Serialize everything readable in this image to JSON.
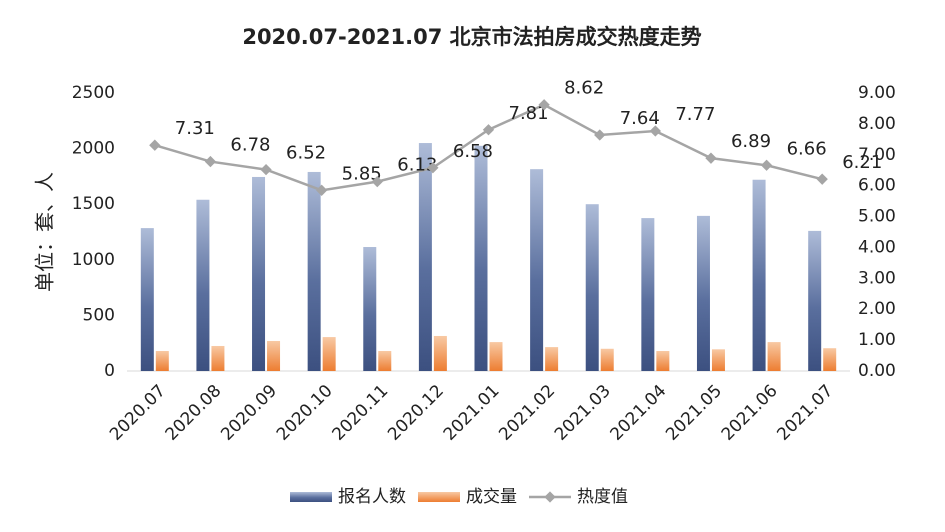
{
  "chart_data": {
    "type": "bar_line",
    "title": "2020.07-2021.07 北京市法拍房成交热度走势",
    "y_label": "单位：套、人",
    "categories": [
      "2020.07",
      "2020.08",
      "2020.09",
      "2020.10",
      "2020.11",
      "2020.12",
      "2021.01",
      "2021.02",
      "2021.03",
      "2021.04",
      "2021.05",
      "2021.06",
      "2021.07"
    ],
    "series": [
      {
        "name": "报名人数",
        "type": "bar",
        "color": "#44598a",
        "values": [
          1285,
          1540,
          1745,
          1790,
          1115,
          2050,
          2025,
          1815,
          1500,
          1375,
          1395,
          1720,
          1260
        ]
      },
      {
        "name": "成交量",
        "type": "bar",
        "color": "#ed7d31",
        "values": [
          180,
          225,
          270,
          305,
          180,
          315,
          260,
          215,
          200,
          180,
          195,
          260,
          205
        ]
      },
      {
        "name": "热度值",
        "type": "line",
        "axis": "y2",
        "color": "#a5a5a5",
        "values": [
          7.31,
          6.78,
          6.52,
          5.85,
          6.13,
          6.58,
          7.81,
          8.62,
          7.64,
          7.77,
          6.89,
          6.66,
          6.21
        ]
      }
    ],
    "ylim": [
      0,
      2500
    ],
    "yticks": [
      0,
      500,
      1000,
      1500,
      2000,
      2500
    ],
    "y2lim": [
      0,
      9
    ],
    "y2ticks": [
      {
        "value": 0,
        "label": "0.00"
      },
      {
        "value": 1,
        "label": "1.00"
      },
      {
        "value": 2,
        "label": "2.00"
      },
      {
        "value": 3,
        "label": "3.00"
      },
      {
        "value": 4,
        "label": "4.00"
      },
      {
        "value": 5,
        "label": "5.00"
      },
      {
        "value": 6,
        "label": "6.00"
      },
      {
        "value": 7,
        "label": "7.00"
      },
      {
        "value": 8,
        "label": "8.00"
      },
      {
        "value": 9,
        "label": "9.00"
      }
    ],
    "legend": "bottom"
  }
}
